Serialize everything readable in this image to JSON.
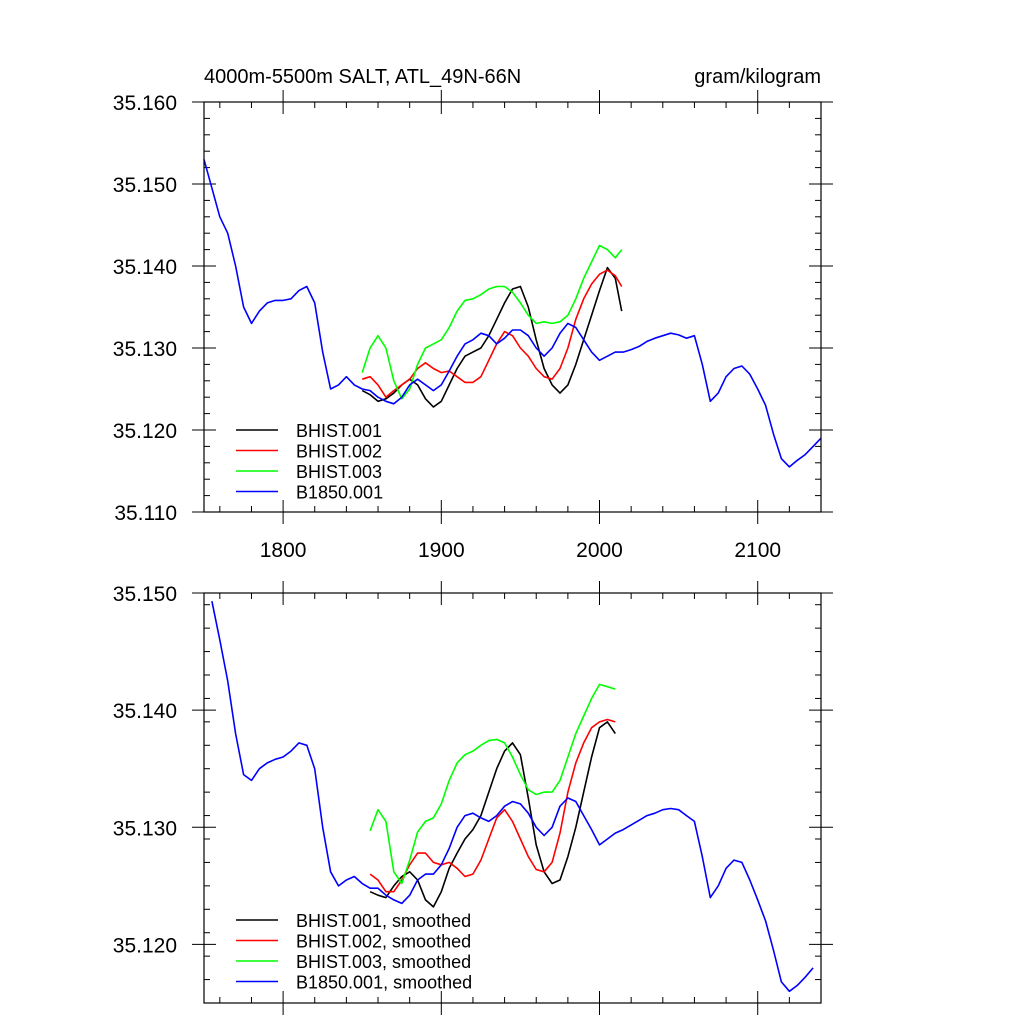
{
  "chart_data": [
    {
      "type": "line",
      "title": "4000m-5500m SALT, ATL_49N-66N",
      "units": "gram/kilogram",
      "xlim": [
        1750,
        2140
      ],
      "ylim": [
        35.11,
        35.16
      ],
      "xticks": [
        1800,
        1900,
        2000,
        2100
      ],
      "xtick_labels": [
        "1800",
        "1900",
        "2000",
        "2100"
      ],
      "yticks": [
        35.11,
        35.12,
        35.13,
        35.14,
        35.15,
        35.16
      ],
      "ytick_labels": [
        "35.110",
        "35.120",
        "35.130",
        "35.140",
        "35.150",
        "35.160"
      ],
      "legend_position": "bottom-left",
      "series": [
        {
          "name": "BHIST.001",
          "color": "#000000",
          "x": [
            1850,
            1855,
            1860,
            1865,
            1870,
            1875,
            1880,
            1885,
            1890,
            1895,
            1900,
            1905,
            1910,
            1915,
            1920,
            1925,
            1930,
            1935,
            1940,
            1945,
            1950,
            1955,
            1960,
            1965,
            1970,
            1975,
            1980,
            1985,
            1990,
            1995,
            2000,
            2005,
            2010,
            2014
          ],
          "y": [
            35.1248,
            35.1243,
            35.1235,
            35.1238,
            35.1245,
            35.1255,
            35.1262,
            35.1255,
            35.1238,
            35.1228,
            35.1235,
            35.1255,
            35.1275,
            35.129,
            35.1295,
            35.13,
            35.1315,
            35.1335,
            35.1355,
            35.1372,
            35.1375,
            35.135,
            35.131,
            35.1275,
            35.1255,
            35.1245,
            35.1255,
            35.128,
            35.131,
            35.134,
            35.137,
            35.1398,
            35.1385,
            35.1345
          ]
        },
        {
          "name": "BHIST.002",
          "color": "#ff0000",
          "x": [
            1850,
            1855,
            1860,
            1865,
            1870,
            1875,
            1880,
            1885,
            1890,
            1895,
            1900,
            1905,
            1910,
            1915,
            1920,
            1925,
            1930,
            1935,
            1940,
            1945,
            1950,
            1955,
            1960,
            1965,
            1970,
            1975,
            1980,
            1985,
            1990,
            1995,
            2000,
            2005,
            2010,
            2014
          ],
          "y": [
            35.1262,
            35.1265,
            35.1255,
            35.124,
            35.1248,
            35.1255,
            35.1262,
            35.1275,
            35.1282,
            35.1275,
            35.127,
            35.1272,
            35.1265,
            35.1258,
            35.1258,
            35.1265,
            35.1285,
            35.1305,
            35.132,
            35.1315,
            35.13,
            35.129,
            35.1275,
            35.1265,
            35.1262,
            35.1275,
            35.13,
            35.1335,
            35.136,
            35.1378,
            35.139,
            35.1395,
            35.1388,
            35.1375
          ]
        },
        {
          "name": "BHIST.003",
          "color": "#00ff00",
          "x": [
            1850,
            1855,
            1860,
            1865,
            1870,
            1875,
            1880,
            1885,
            1890,
            1895,
            1900,
            1905,
            1910,
            1915,
            1920,
            1925,
            1930,
            1935,
            1940,
            1945,
            1950,
            1955,
            1960,
            1965,
            1970,
            1975,
            1980,
            1985,
            1990,
            1995,
            2000,
            2005,
            2010,
            2014
          ],
          "y": [
            35.127,
            35.13,
            35.1315,
            35.13,
            35.126,
            35.1238,
            35.125,
            35.128,
            35.13,
            35.1305,
            35.131,
            35.1325,
            35.1345,
            35.1358,
            35.136,
            35.1365,
            35.1372,
            35.1375,
            35.1375,
            35.1368,
            35.1355,
            35.134,
            35.133,
            35.1332,
            35.133,
            35.1332,
            35.134,
            35.136,
            35.1385,
            35.1405,
            35.1425,
            35.142,
            35.141,
            35.142
          ]
        },
        {
          "name": "B1850.001",
          "color": "#0000ff",
          "x": [
            1750,
            1755,
            1760,
            1765,
            1770,
            1775,
            1780,
            1785,
            1790,
            1795,
            1800,
            1805,
            1810,
            1815,
            1820,
            1825,
            1830,
            1835,
            1840,
            1845,
            1850,
            1855,
            1860,
            1865,
            1870,
            1875,
            1880,
            1885,
            1890,
            1895,
            1900,
            1905,
            1910,
            1915,
            1920,
            1925,
            1930,
            1935,
            1940,
            1945,
            1950,
            1955,
            1960,
            1965,
            1970,
            1975,
            1980,
            1985,
            1990,
            1995,
            2000,
            2005,
            2010,
            2015,
            2020,
            2025,
            2030,
            2035,
            2040,
            2045,
            2050,
            2055,
            2060,
            2065,
            2070,
            2075,
            2080,
            2085,
            2090,
            2095,
            2100,
            2105,
            2110,
            2115,
            2120,
            2125,
            2130,
            2135,
            2140
          ],
          "y": [
            35.153,
            35.1495,
            35.146,
            35.144,
            35.14,
            35.135,
            35.133,
            35.1345,
            35.1355,
            35.1358,
            35.1358,
            35.136,
            35.137,
            35.1375,
            35.1355,
            35.1295,
            35.125,
            35.1255,
            35.1265,
            35.1255,
            35.125,
            35.1248,
            35.124,
            35.1235,
            35.1232,
            35.124,
            35.1255,
            35.1262,
            35.1255,
            35.1248,
            35.1255,
            35.1272,
            35.129,
            35.1305,
            35.131,
            35.1318,
            35.1315,
            35.1305,
            35.1312,
            35.1322,
            35.1322,
            35.1315,
            35.13,
            35.129,
            35.13,
            35.1318,
            35.133,
            35.1325,
            35.131,
            35.1295,
            35.1285,
            35.129,
            35.1295,
            35.1295,
            35.1298,
            35.1302,
            35.1308,
            35.1312,
            35.1315,
            35.1318,
            35.1316,
            35.1312,
            35.1315,
            35.128,
            35.1235,
            35.1245,
            35.1265,
            35.1275,
            35.1278,
            35.1268,
            35.125,
            35.123,
            35.1195,
            35.1165,
            35.1155,
            35.1163,
            35.117,
            35.118,
            35.119
          ]
        }
      ]
    },
    {
      "type": "line",
      "xlim": [
        1750,
        2140
      ],
      "ylim": [
        35.115,
        35.15
      ],
      "xticks": [
        1800,
        1900,
        2000,
        2100
      ],
      "yticks": [
        35.12,
        35.13,
        35.14,
        35.15
      ],
      "ytick_labels": [
        "35.120",
        "35.130",
        "35.140",
        "35.150"
      ],
      "legend_position": "bottom-left",
      "series": [
        {
          "name": "BHIST.001, smoothed",
          "color": "#000000",
          "x": [
            1855,
            1860,
            1865,
            1870,
            1875,
            1880,
            1885,
            1890,
            1895,
            1900,
            1905,
            1910,
            1915,
            1920,
            1925,
            1930,
            1935,
            1940,
            1945,
            1950,
            1955,
            1960,
            1965,
            1970,
            1975,
            1980,
            1985,
            1990,
            1995,
            2000,
            2005,
            2010
          ],
          "y": [
            35.1245,
            35.1242,
            35.124,
            35.125,
            35.1258,
            35.1262,
            35.1255,
            35.1238,
            35.1232,
            35.1245,
            35.1265,
            35.1278,
            35.129,
            35.1298,
            35.131,
            35.133,
            35.135,
            35.1365,
            35.1372,
            35.1362,
            35.1325,
            35.1285,
            35.1262,
            35.1252,
            35.1255,
            35.1275,
            35.13,
            35.133,
            35.136,
            35.1385,
            35.139,
            35.138
          ]
        },
        {
          "name": "BHIST.002, smoothed",
          "color": "#ff0000",
          "x": [
            1855,
            1860,
            1865,
            1870,
            1875,
            1880,
            1885,
            1890,
            1895,
            1900,
            1905,
            1910,
            1915,
            1920,
            1925,
            1930,
            1935,
            1940,
            1945,
            1950,
            1955,
            1960,
            1965,
            1970,
            1975,
            1980,
            1985,
            1990,
            1995,
            2000,
            2005,
            2010
          ],
          "y": [
            35.126,
            35.1255,
            35.1245,
            35.1245,
            35.1255,
            35.1268,
            35.1278,
            35.1278,
            35.127,
            35.1268,
            35.127,
            35.1265,
            35.1258,
            35.126,
            35.1272,
            35.129,
            35.1308,
            35.1315,
            35.1305,
            35.129,
            35.1275,
            35.1264,
            35.1262,
            35.127,
            35.1295,
            35.133,
            35.1355,
            35.1372,
            35.1385,
            35.139,
            35.1392,
            35.139
          ]
        },
        {
          "name": "BHIST.003, smoothed",
          "color": "#00ff00",
          "x": [
            1855,
            1860,
            1865,
            1870,
            1875,
            1880,
            1885,
            1890,
            1895,
            1900,
            1905,
            1910,
            1915,
            1920,
            1925,
            1930,
            1935,
            1940,
            1945,
            1950,
            1955,
            1960,
            1965,
            1970,
            1975,
            1980,
            1985,
            1990,
            1995,
            2000,
            2005,
            2010
          ],
          "y": [
            35.1297,
            35.1315,
            35.1305,
            35.1262,
            35.1252,
            35.1272,
            35.1296,
            35.1305,
            35.1308,
            35.132,
            35.134,
            35.1355,
            35.1362,
            35.1365,
            35.137,
            35.1374,
            35.1375,
            35.1372,
            35.136,
            35.1345,
            35.1332,
            35.1328,
            35.133,
            35.133,
            35.134,
            35.136,
            35.138,
            35.1395,
            35.141,
            35.1422,
            35.142,
            35.1418
          ]
        },
        {
          "name": "B1850.001, smoothed",
          "color": "#0000ff",
          "x": [
            1755,
            1760,
            1765,
            1770,
            1775,
            1780,
            1785,
            1790,
            1795,
            1800,
            1805,
            1810,
            1815,
            1820,
            1825,
            1830,
            1835,
            1840,
            1845,
            1850,
            1855,
            1860,
            1865,
            1870,
            1875,
            1880,
            1885,
            1890,
            1895,
            1900,
            1905,
            1910,
            1915,
            1920,
            1925,
            1930,
            1935,
            1940,
            1945,
            1950,
            1955,
            1960,
            1965,
            1970,
            1975,
            1980,
            1985,
            1990,
            1995,
            2000,
            2005,
            2010,
            2015,
            2020,
            2025,
            2030,
            2035,
            2040,
            2045,
            2050,
            2055,
            2060,
            2065,
            2070,
            2075,
            2080,
            2085,
            2090,
            2095,
            2100,
            2105,
            2110,
            2115,
            2120,
            2125,
            2130,
            2135
          ],
          "y": [
            35.1493,
            35.146,
            35.1425,
            35.138,
            35.1345,
            35.134,
            35.135,
            35.1355,
            35.1358,
            35.136,
            35.1365,
            35.1372,
            35.137,
            35.135,
            35.13,
            35.1262,
            35.125,
            35.1255,
            35.1258,
            35.1252,
            35.1248,
            35.1248,
            35.1242,
            35.1238,
            35.1235,
            35.1242,
            35.1255,
            35.126,
            35.126,
            35.1268,
            35.1282,
            35.13,
            35.131,
            35.1312,
            35.1308,
            35.1305,
            35.131,
            35.1318,
            35.1322,
            35.132,
            35.1312,
            35.13,
            35.1293,
            35.13,
            35.1318,
            35.1325,
            35.1322,
            35.131,
            35.1298,
            35.1285,
            35.129,
            35.1295,
            35.1298,
            35.1302,
            35.1306,
            35.131,
            35.1312,
            35.1315,
            35.1316,
            35.1315,
            35.131,
            35.1305,
            35.1275,
            35.124,
            35.125,
            35.1265,
            35.1272,
            35.127,
            35.1255,
            35.1238,
            35.122,
            35.1195,
            35.1168,
            35.116,
            35.1165,
            35.1172,
            35.118
          ]
        }
      ]
    }
  ]
}
